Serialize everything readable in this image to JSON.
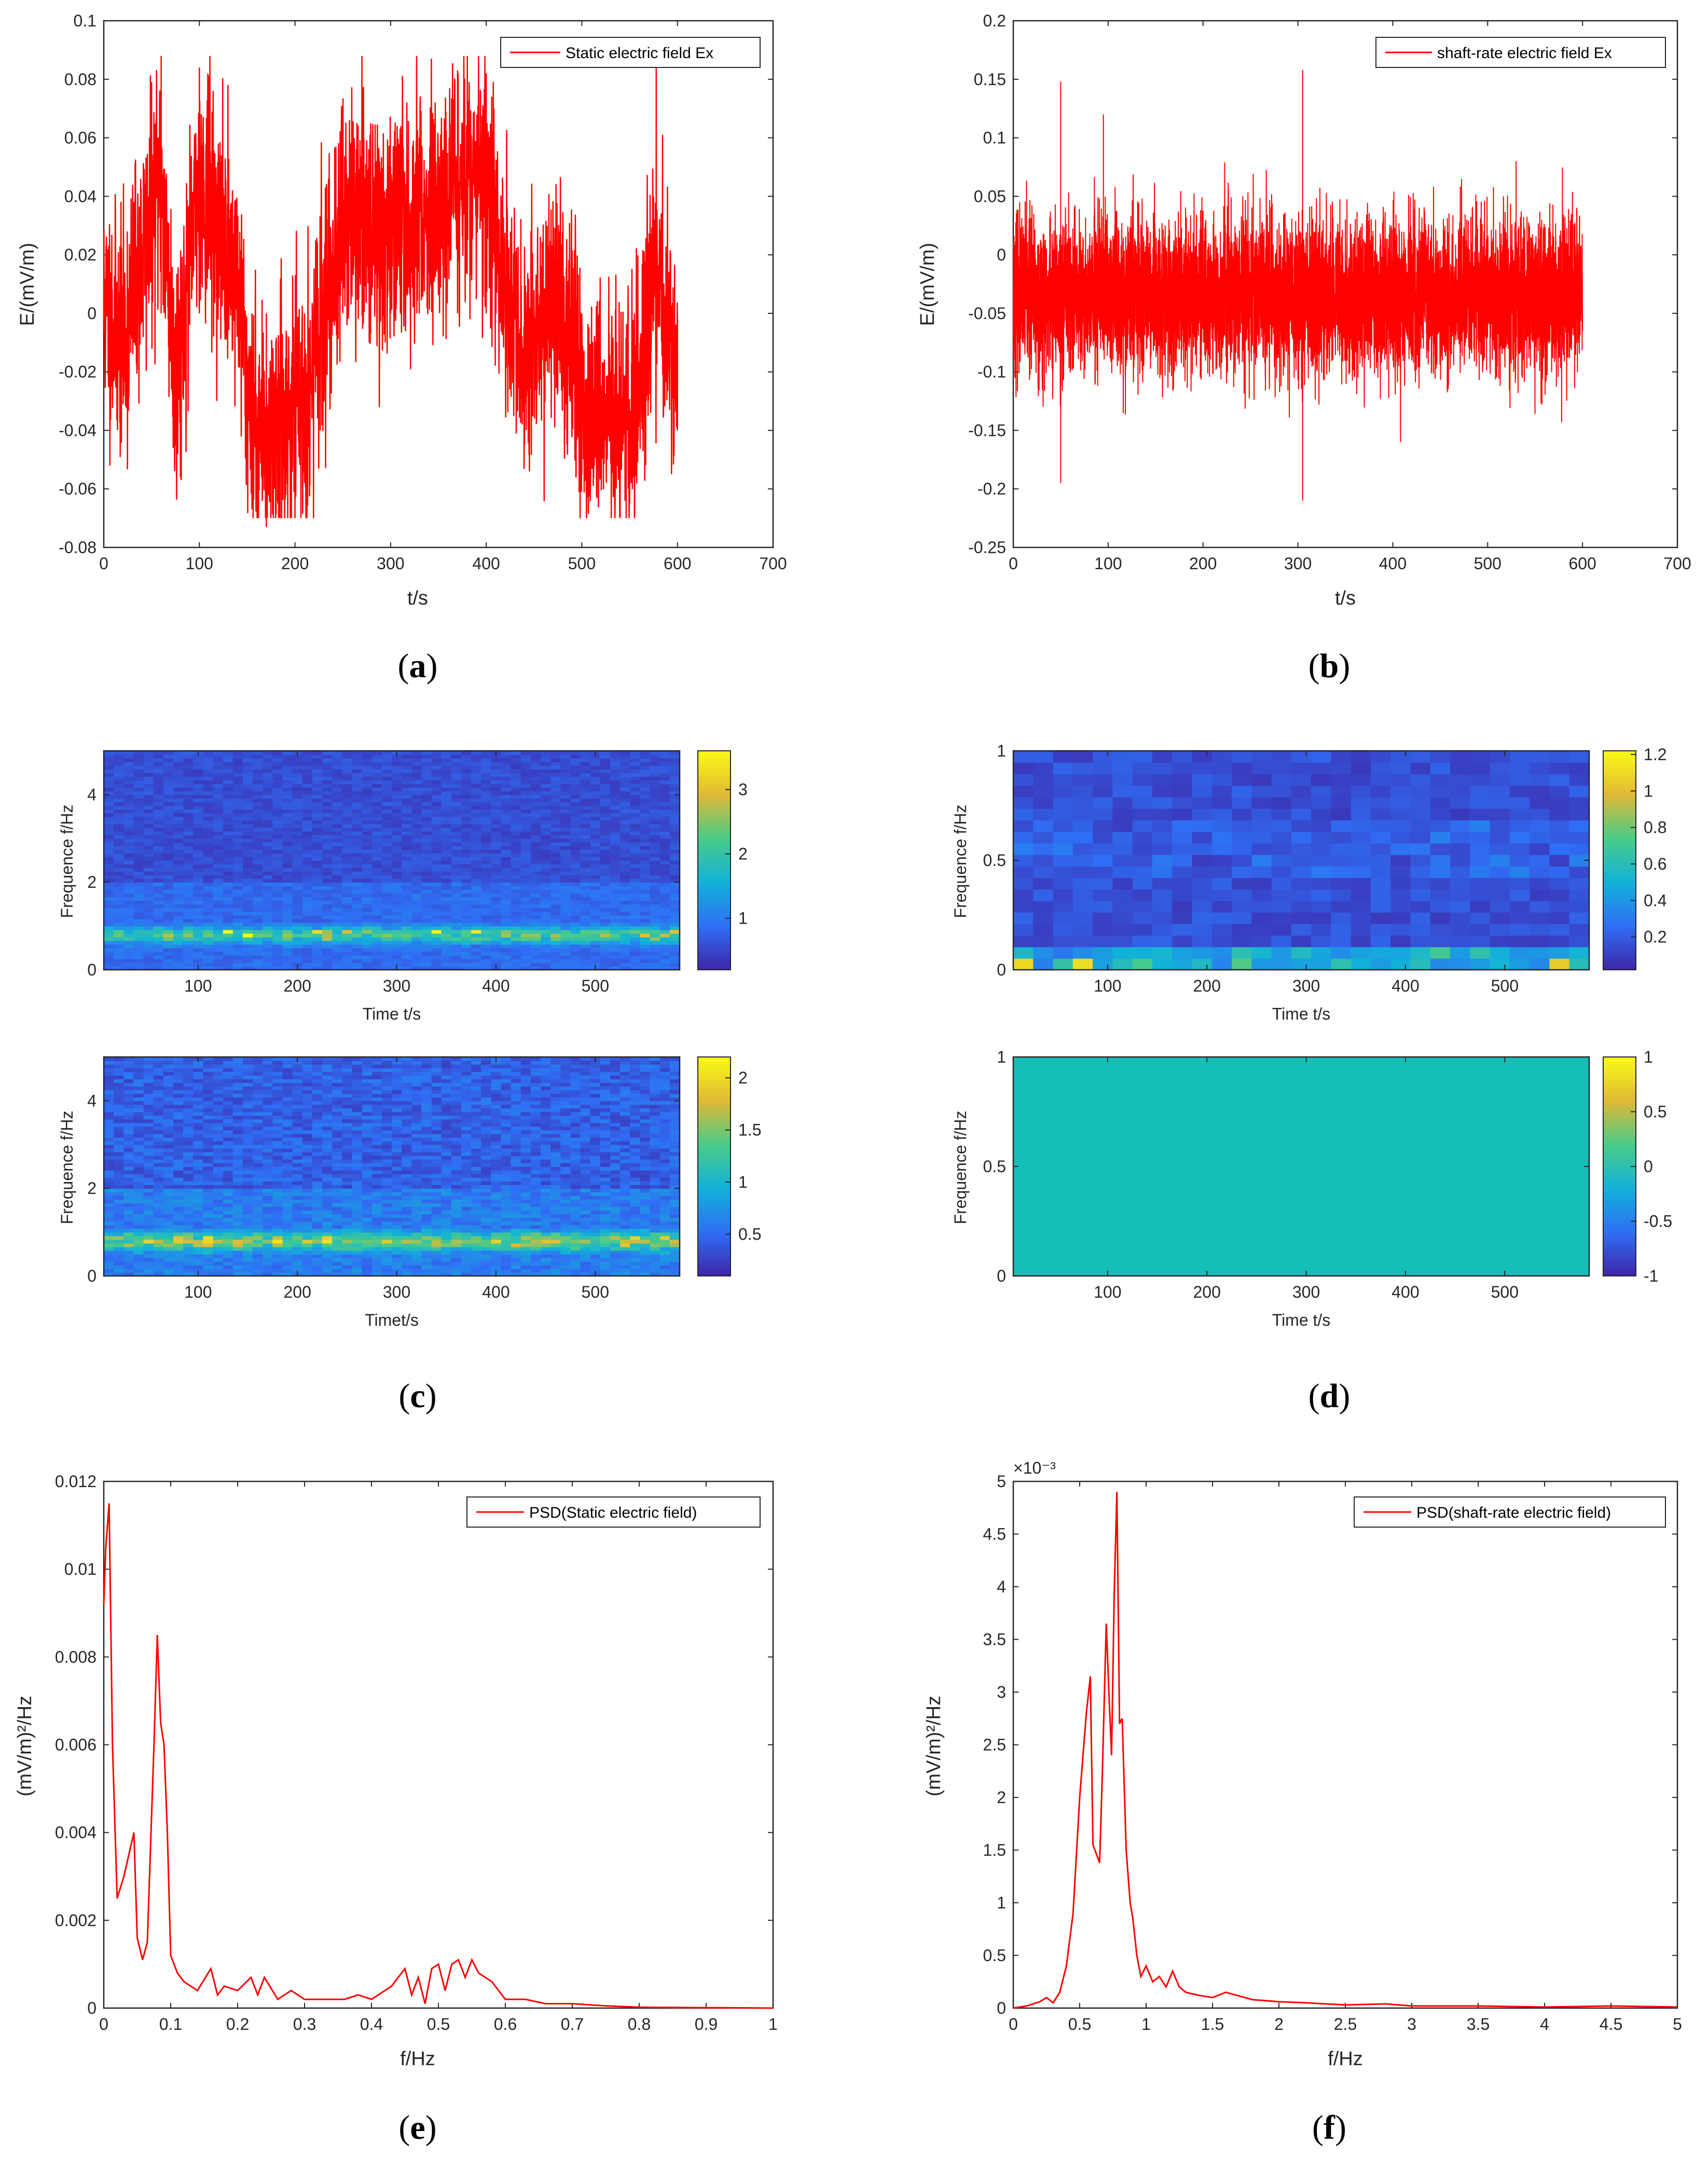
{
  "colors": {
    "signal": "#ff0000",
    "axis": "#262626",
    "uniform_field": "#13BEB7"
  },
  "panels": {
    "a": {
      "caption": "a"
    },
    "b": {
      "caption": "b"
    },
    "c": {
      "caption": "c"
    },
    "d": {
      "caption": "d"
    },
    "e": {
      "caption": "e"
    },
    "f": {
      "caption": "f"
    }
  },
  "chart_data": [
    {
      "id": "a",
      "type": "line",
      "title": "",
      "legend": "Static electric field Ex",
      "legend_position": "top-right",
      "xlabel": "t/s",
      "ylabel": "E/(mV/m)",
      "xlim": [
        0,
        700
      ],
      "ylim": [
        -0.08,
        0.1
      ],
      "xticks": [
        "0",
        "100",
        "200",
        "300",
        "400",
        "500",
        "600",
        "700"
      ],
      "yticks": [
        "-0.08",
        "-0.06",
        "-0.04",
        "-0.02",
        "0",
        "0.02",
        "0.04",
        "0.06",
        "0.08",
        "0.1"
      ],
      "x_span": [
        0,
        600
      ],
      "key_points": [
        [
          0,
          0.005
        ],
        [
          20,
          -0.02
        ],
        [
          60,
          0.088
        ],
        [
          75,
          -0.045
        ],
        [
          100,
          0.084
        ],
        [
          140,
          0.02
        ],
        [
          155,
          -0.067
        ],
        [
          170,
          -0.073
        ],
        [
          210,
          -0.058
        ],
        [
          250,
          0.06
        ],
        [
          300,
          0.05
        ],
        [
          330,
          0.06
        ],
        [
          370,
          0.083
        ],
        [
          400,
          0.082
        ],
        [
          440,
          -0.045
        ],
        [
          470,
          0.02
        ],
        [
          500,
          -0.055
        ],
        [
          555,
          -0.07
        ],
        [
          575,
          0.04
        ],
        [
          600,
          -0.04
        ]
      ],
      "approx_band": [
        -0.05,
        0.08
      ]
    },
    {
      "id": "b",
      "type": "line",
      "title": "",
      "legend": "shaft-rate electric field Ex",
      "legend_position": "top-right",
      "xlabel": "t/s",
      "ylabel": "E/(mV/m)",
      "xlim": [
        0,
        700
      ],
      "ylim": [
        -0.25,
        0.2
      ],
      "xticks": [
        "0",
        "100",
        "200",
        "300",
        "400",
        "500",
        "600",
        "700"
      ],
      "yticks": [
        "-0.25",
        "-0.2",
        "-0.15",
        "-0.1",
        "-0.05",
        "0",
        "0.05",
        "0.1",
        "0.15",
        "0.2"
      ],
      "x_span": [
        0,
        600
      ],
      "mean": -0.035,
      "key_points": [
        [
          50,
          0.148
        ],
        [
          50,
          -0.195
        ],
        [
          95,
          0.12
        ],
        [
          305,
          0.158
        ],
        [
          305,
          -0.21
        ],
        [
          530,
          0.08
        ]
      ]
    },
    {
      "id": "c_top",
      "type": "heatmap",
      "title": "",
      "xlabel": "Time t/s",
      "ylabel": "Frequence f/Hz",
      "xlim": [
        5,
        585
      ],
      "ylim": [
        0,
        5
      ],
      "xticks": [
        "100",
        "200",
        "300",
        "400",
        "500"
      ],
      "yticks": [
        "0",
        "2",
        "4"
      ],
      "colorbar_ticks": [
        "1",
        "2",
        "3"
      ],
      "colorbar_range": [
        0.2,
        3.6
      ],
      "dominant_band_hz": 0.8
    },
    {
      "id": "c_bottom",
      "type": "heatmap",
      "title": "",
      "xlabel": "Timet/s",
      "ylabel": "Frequence f/Hz",
      "xlim": [
        5,
        585
      ],
      "ylim": [
        0,
        5
      ],
      "xticks": [
        "100",
        "200",
        "300",
        "400",
        "500"
      ],
      "yticks": [
        "0",
        "2",
        "4"
      ],
      "colorbar_ticks": [
        "0.5",
        "1",
        "1.5",
        "2"
      ],
      "colorbar_range": [
        0.1,
        2.2
      ],
      "dominant_band_hz": 0.8
    },
    {
      "id": "d_top",
      "type": "heatmap",
      "title": "",
      "xlabel": "Time t/s",
      "ylabel": "Frequence f/Hz",
      "xlim": [
        5,
        585
      ],
      "ylim": [
        0,
        1
      ],
      "xticks": [
        "100",
        "200",
        "300",
        "400",
        "500"
      ],
      "yticks": [
        "0",
        "0.5",
        "1"
      ],
      "colorbar_ticks": [
        "0.2",
        "0.4",
        "0.6",
        "0.8",
        "1",
        "1.2"
      ],
      "colorbar_range": [
        0.02,
        1.22
      ],
      "dominant_band_hz": 0.05
    },
    {
      "id": "d_bottom",
      "type": "heatmap",
      "title": "",
      "xlabel": "Time t/s",
      "ylabel": "Frequence f/Hz",
      "xlim": [
        5,
        585
      ],
      "ylim": [
        0,
        1
      ],
      "xticks": [
        "100",
        "200",
        "300",
        "400",
        "500"
      ],
      "yticks": [
        "0",
        "0.5",
        "1"
      ],
      "colorbar_ticks": [
        "-1",
        "-0.5",
        "0",
        "0.5",
        "1"
      ],
      "colorbar_range": [
        -1,
        1
      ],
      "uniform_value": 0
    },
    {
      "id": "e",
      "type": "line",
      "title": "",
      "legend": "PSD(Static electric field)",
      "legend_position": "top-right",
      "xlabel": "f/Hz",
      "ylabel": "(mV/m)²/Hz",
      "xlim": [
        0,
        1
      ],
      "ylim": [
        0,
        0.012
      ],
      "xticks": [
        "0",
        "0.1",
        "0.2",
        "0.3",
        "0.4",
        "0.5",
        "0.6",
        "0.7",
        "0.8",
        "0.9",
        "1"
      ],
      "yticks": [
        "0",
        "0.002",
        "0.004",
        "0.006",
        "0.008",
        "0.01",
        "0.012"
      ],
      "x": [
        0,
        0.003,
        0.008,
        0.013,
        0.02,
        0.03,
        0.045,
        0.05,
        0.058,
        0.065,
        0.075,
        0.08,
        0.085,
        0.09,
        0.095,
        0.1,
        0.11,
        0.12,
        0.14,
        0.16,
        0.17,
        0.18,
        0.2,
        0.22,
        0.23,
        0.24,
        0.26,
        0.28,
        0.3,
        0.33,
        0.36,
        0.38,
        0.4,
        0.43,
        0.45,
        0.46,
        0.47,
        0.48,
        0.49,
        0.5,
        0.51,
        0.52,
        0.53,
        0.54,
        0.55,
        0.56,
        0.58,
        0.6,
        0.63,
        0.66,
        0.7,
        0.75,
        0.8,
        0.9,
        1.0
      ],
      "y": [
        0.0092,
        0.0105,
        0.0115,
        0.006,
        0.0025,
        0.003,
        0.004,
        0.0016,
        0.0011,
        0.0015,
        0.006,
        0.0085,
        0.0065,
        0.006,
        0.004,
        0.0012,
        0.0008,
        0.0006,
        0.0004,
        0.0009,
        0.0003,
        0.0005,
        0.0004,
        0.0007,
        0.0003,
        0.0007,
        0.0002,
        0.0004,
        0.0002,
        0.0002,
        0.0002,
        0.0003,
        0.0002,
        0.0005,
        0.0009,
        0.0003,
        0.0007,
        0.0001,
        0.0009,
        0.001,
        0.0004,
        0.001,
        0.0011,
        0.0007,
        0.0011,
        0.0008,
        0.0006,
        0.0002,
        0.0002,
        0.0001,
        0.0001,
        5e-05,
        2e-05,
        1e-05,
        0.0
      ],
      "type_note": "power spectral density"
    },
    {
      "id": "f",
      "type": "line",
      "title": "",
      "legend": "PSD(shaft-rate electric field)",
      "legend_position": "top-right",
      "xlabel": "f/Hz",
      "ylabel": "(mV/m)²/Hz",
      "y_multiplier_label": "×10⁻³",
      "xlim": [
        0,
        5
      ],
      "ylim": [
        0,
        5
      ],
      "xticks": [
        "0",
        "0.5",
        "1",
        "1.5",
        "2",
        "2.5",
        "3",
        "3.5",
        "4",
        "4.5",
        "5"
      ],
      "yticks": [
        "0",
        "0.5",
        "1",
        "1.5",
        "2",
        "2.5",
        "3",
        "3.5",
        "4",
        "4.5",
        "5"
      ],
      "x": [
        0,
        0.1,
        0.2,
        0.25,
        0.3,
        0.35,
        0.4,
        0.45,
        0.5,
        0.55,
        0.58,
        0.6,
        0.65,
        0.67,
        0.7,
        0.72,
        0.74,
        0.76,
        0.78,
        0.8,
        0.82,
        0.85,
        0.88,
        0.9,
        0.93,
        0.96,
        1.0,
        1.05,
        1.1,
        1.15,
        1.2,
        1.25,
        1.3,
        1.4,
        1.5,
        1.6,
        1.8,
        2.0,
        2.2,
        2.5,
        2.8,
        3.0,
        3.5,
        4.0,
        4.5,
        5.0
      ],
      "y": [
        0.0,
        0.02,
        0.06,
        0.1,
        0.05,
        0.15,
        0.4,
        0.9,
        2.0,
        2.8,
        3.15,
        1.55,
        1.38,
        2.2,
        3.65,
        3.0,
        2.4,
        3.95,
        4.9,
        2.7,
        2.75,
        1.5,
        1.0,
        0.85,
        0.5,
        0.3,
        0.4,
        0.25,
        0.3,
        0.2,
        0.35,
        0.2,
        0.15,
        0.12,
        0.1,
        0.15,
        0.08,
        0.06,
        0.05,
        0.03,
        0.04,
        0.02,
        0.02,
        0.01,
        0.02,
        0.01
      ]
    }
  ]
}
